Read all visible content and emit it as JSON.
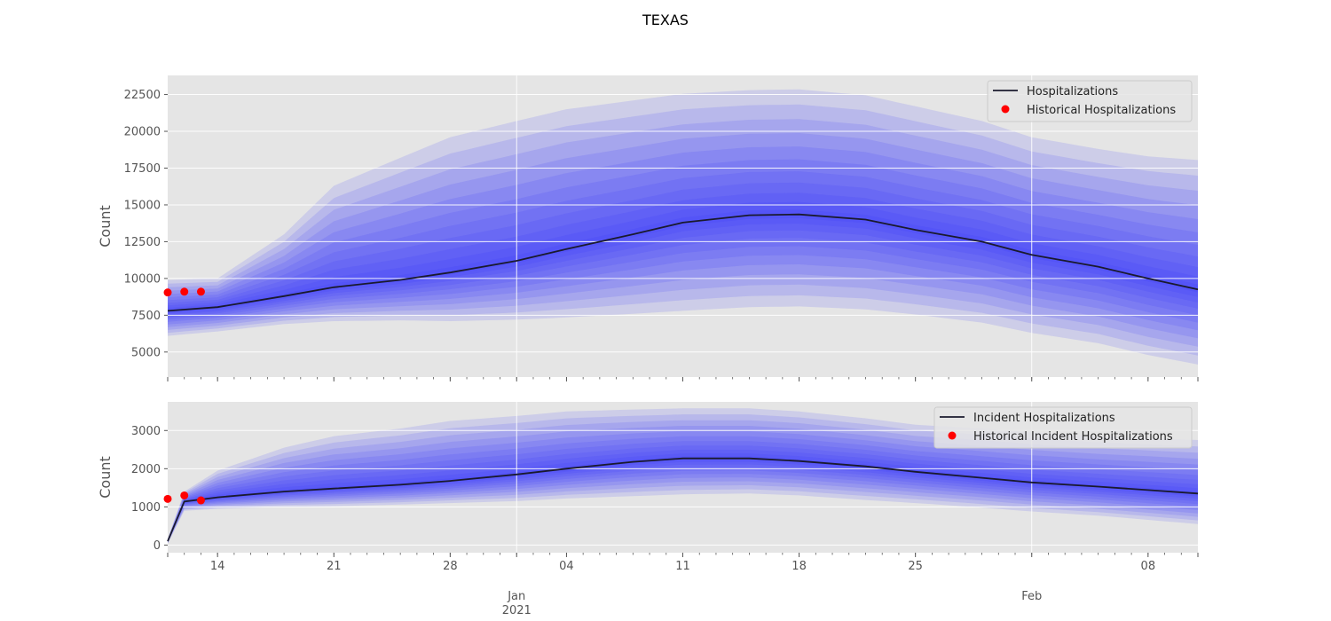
{
  "figure": {
    "title": "TEXAS"
  },
  "colors": {
    "band": "#2b2bff",
    "median": "#1a1a2e",
    "history": "#ff0000",
    "panel_bg": "#e5e5e5",
    "grid": "#ffffff",
    "text": "#555555"
  },
  "x_axis": {
    "start": "2020-12-11",
    "end": "2021-02-11",
    "major_ticks": [
      {
        "date": "2020-12-14",
        "label": "14"
      },
      {
        "date": "2020-12-21",
        "label": "21"
      },
      {
        "date": "2020-12-28",
        "label": "28"
      },
      {
        "date": "2021-01-04",
        "label": "04"
      },
      {
        "date": "2021-01-11",
        "label": "11"
      },
      {
        "date": "2021-01-18",
        "label": "18"
      },
      {
        "date": "2021-01-25",
        "label": "25"
      },
      {
        "date": "2021-02-08",
        "label": "08"
      }
    ],
    "month_ticks": [
      {
        "date": "2021-01-01",
        "label": "Jan",
        "sublabel": "2021"
      },
      {
        "date": "2021-02-01",
        "label": "Feb",
        "sublabel": ""
      }
    ]
  },
  "chart_data": [
    {
      "type": "area",
      "ylabel": "Count",
      "ylim": [
        3300,
        23800
      ],
      "yticks": [
        5000,
        7500,
        10000,
        12500,
        15000,
        17500,
        20000,
        22500
      ],
      "grid": true,
      "legend": "top-right",
      "legend_entries": [
        "Hospitalizations",
        "Historical Hospitalizations"
      ],
      "x": [
        "2020-12-11",
        "2020-12-14",
        "2020-12-18",
        "2020-12-21",
        "2020-12-25",
        "2020-12-28",
        "2021-01-01",
        "2021-01-04",
        "2021-01-08",
        "2021-01-11",
        "2021-01-15",
        "2021-01-18",
        "2021-01-22",
        "2021-01-25",
        "2021-01-29",
        "2021-02-01",
        "2021-02-05",
        "2021-02-08",
        "2021-02-11"
      ],
      "median": [
        7800,
        8050,
        8800,
        9400,
        9900,
        10400,
        11200,
        12000,
        13000,
        13800,
        14300,
        14350,
        14000,
        13300,
        12500,
        11600,
        10800,
        10000,
        9250
      ],
      "lower_outer": [
        6100,
        6400,
        6900,
        7100,
        7150,
        7100,
        7200,
        7350,
        7600,
        7800,
        8050,
        8100,
        7900,
        7550,
        7000,
        6300,
        5600,
        4800,
        4150
      ],
      "upper_outer": [
        9900,
        10000,
        13000,
        16300,
        18200,
        19600,
        20700,
        21500,
        22100,
        22550,
        22800,
        22850,
        22450,
        21700,
        20700,
        19600,
        18800,
        18300,
        18050
      ],
      "historical": {
        "x": [
          "2020-12-11",
          "2020-12-12",
          "2020-12-13"
        ],
        "y": [
          9050,
          9100,
          9100
        ]
      }
    },
    {
      "type": "area",
      "ylabel": "Count",
      "ylim": [
        -200,
        3750
      ],
      "yticks": [
        0,
        1000,
        2000,
        3000
      ],
      "grid": true,
      "legend": "top-right",
      "legend_entries": [
        "Incident Hospitalizations",
        "Historical Incident Hospitalizations"
      ],
      "x": [
        "2020-12-11",
        "2020-12-12",
        "2020-12-14",
        "2020-12-18",
        "2020-12-21",
        "2020-12-25",
        "2020-12-28",
        "2021-01-01",
        "2021-01-04",
        "2021-01-08",
        "2021-01-11",
        "2021-01-15",
        "2021-01-18",
        "2021-01-22",
        "2021-01-25",
        "2021-01-29",
        "2021-02-01",
        "2021-02-05",
        "2021-02-08",
        "2021-02-11"
      ],
      "median": [
        100,
        1140,
        1250,
        1400,
        1480,
        1580,
        1680,
        1850,
        2000,
        2180,
        2270,
        2270,
        2200,
        2060,
        1920,
        1760,
        1640,
        1530,
        1440,
        1350
      ],
      "lower_outer": [
        40,
        900,
        950,
        1000,
        1020,
        1060,
        1100,
        1150,
        1220,
        1280,
        1330,
        1350,
        1300,
        1180,
        1100,
        980,
        880,
        770,
        660,
        550
      ],
      "upper_outer": [
        160,
        1400,
        1950,
        2550,
        2850,
        3050,
        3250,
        3380,
        3500,
        3550,
        3580,
        3580,
        3500,
        3320,
        3150,
        3050,
        2950,
        2850,
        2800,
        2750
      ],
      "historical": {
        "x": [
          "2020-12-11",
          "2020-12-12",
          "2020-12-13"
        ],
        "y": [
          1210,
          1300,
          1170
        ]
      }
    }
  ]
}
